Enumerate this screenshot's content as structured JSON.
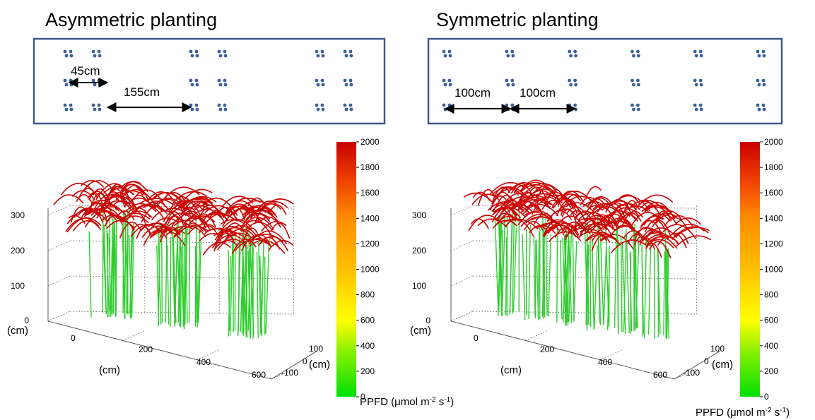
{
  "colors": {
    "frame": "#3c5a8c",
    "dot": "#3a5fa0",
    "stem": "#2fcc2f",
    "colormap": [
      "#00ff00",
      "#7fff00",
      "#ffff00",
      "#ffcc00",
      "#ff9900",
      "#ff5500",
      "#cc0000"
    ]
  },
  "panels": [
    {
      "title": "Asymmetric planting",
      "rows_cm": [
        0,
        45,
        200,
        245,
        400,
        445
      ],
      "dimensions": [
        {
          "label": "45cm"
        },
        {
          "label": "155cm"
        }
      ],
      "scene": {
        "z_ticks": [
          "0",
          "100",
          "200",
          "300"
        ],
        "x_ticks": [
          "0",
          "200",
          "400",
          "600"
        ],
        "y_ticks": [
          "100",
          "0",
          "-100"
        ],
        "z_unit": "(cm)",
        "x_unit": "(cm)",
        "y_unit": "(cm)"
      },
      "colorbar": {
        "ticks": [
          "2000",
          "1800",
          "1600",
          "1400",
          "1200",
          "1000",
          "800",
          "600",
          "400",
          "200",
          "0"
        ],
        "min": 0,
        "max": 2000
      },
      "quantity_label": "PPFD (μmol m",
      "quantity_sup1": "-2",
      "quantity_mid": " s",
      "quantity_sup2": "-1",
      "quantity_end": ")"
    },
    {
      "title": "Symmetric planting",
      "rows_cm": [
        0,
        100,
        200,
        300,
        400,
        500
      ],
      "dimensions": [
        {
          "label": "100cm"
        },
        {
          "label": "100cm"
        }
      ],
      "scene": {
        "z_ticks": [
          "0",
          "100",
          "200",
          "300"
        ],
        "x_ticks": [
          "0",
          "200",
          "400",
          "600"
        ],
        "y_ticks": [
          "100",
          "0",
          "-100"
        ],
        "z_unit": "(cm)",
        "x_unit": "(cm)",
        "y_unit": "(cm)"
      },
      "colorbar": {
        "ticks": [
          "2000",
          "1800",
          "1600",
          "1400",
          "1200",
          "1000",
          "800",
          "600",
          "400",
          "200",
          "0"
        ],
        "min": 0,
        "max": 2000
      },
      "quantity_label": "PPFD (μmol m",
      "quantity_sup1": "-2",
      "quantity_mid": " s",
      "quantity_sup2": "-1",
      "quantity_end": ")"
    }
  ]
}
